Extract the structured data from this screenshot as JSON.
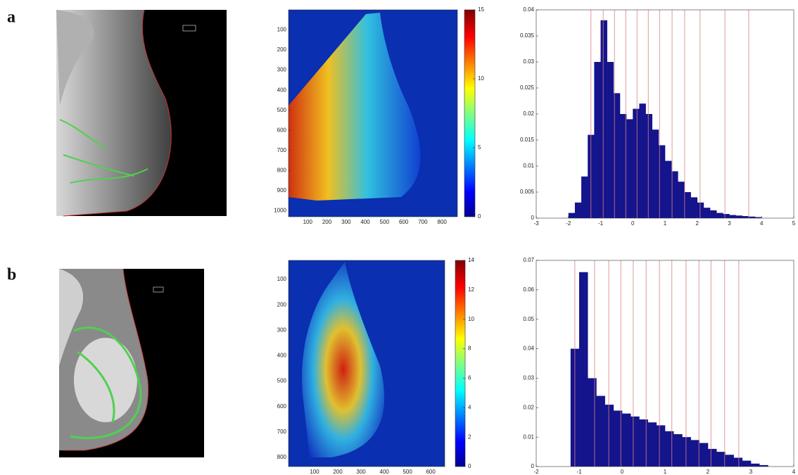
{
  "panel_labels": [
    "a",
    "b"
  ],
  "chart_data": [
    {
      "type": "heatmap",
      "xlim": [
        0,
        880
      ],
      "xticks": [
        100,
        200,
        300,
        400,
        500,
        600,
        700,
        800
      ],
      "ylim": [
        1030,
        0
      ],
      "yticks": [
        100,
        200,
        300,
        400,
        500,
        600,
        700,
        800,
        900,
        1000
      ],
      "clim": [
        0,
        15
      ],
      "colorbar_ticks": [
        0,
        5,
        10,
        15
      ]
    },
    {
      "type": "histogram",
      "color": "#14148c",
      "line_color": "#d98080",
      "xlim": [
        -3,
        5
      ],
      "xticks": [
        -3,
        -2,
        -1,
        0,
        1,
        2,
        3,
        4,
        5
      ],
      "ylim": [
        0,
        0.04
      ],
      "yticks": [
        0,
        0.005,
        0.01,
        0.015,
        0.02,
        0.025,
        0.03,
        0.035,
        0.04
      ],
      "bins": [
        -2,
        -1.8,
        -1.6,
        -1.4,
        -1.2,
        -1,
        -0.8,
        -0.6,
        -0.4,
        -0.2,
        0,
        0.2,
        0.4,
        0.6,
        0.8,
        1,
        1.2,
        1.4,
        1.6,
        1.8,
        2,
        2.2,
        2.4,
        2.6,
        2.8,
        3,
        3.2,
        3.4,
        3.6,
        3.8,
        4
      ],
      "values": [
        0.001,
        0.003,
        0.008,
        0.016,
        0.03,
        0.038,
        0.03,
        0.024,
        0.02,
        0.019,
        0.021,
        0.022,
        0.02,
        0.017,
        0.014,
        0.011,
        0.009,
        0.007,
        0.005,
        0.004,
        0.003,
        0.002,
        0.0015,
        0.001,
        0.0008,
        0.0006,
        0.0005,
        0.0004,
        0.0003,
        0.0002
      ],
      "vlines": [
        -1.3,
        -0.92,
        -0.57,
        -0.22,
        0.13,
        0.48,
        0.83,
        1.22,
        1.61,
        2.09,
        2.86,
        3.6
      ]
    },
    {
      "type": "heatmap",
      "xlim": [
        -12,
        660
      ],
      "xticks": [
        100,
        200,
        300,
        400,
        500,
        600
      ],
      "ylim": [
        836,
        25
      ],
      "yticks": [
        100,
        200,
        300,
        400,
        500,
        600,
        700,
        800
      ],
      "clim": [
        0,
        14
      ],
      "colorbar_ticks": [
        0,
        2,
        4,
        6,
        8,
        10,
        12,
        14
      ]
    },
    {
      "type": "histogram",
      "color": "#14148c",
      "line_color": "#d98080",
      "xlim": [
        -2,
        4
      ],
      "xticks": [
        -2,
        -1,
        0,
        1,
        2,
        3,
        4
      ],
      "ylim": [
        0,
        0.07
      ],
      "yticks": [
        0,
        0.01,
        0.02,
        0.03,
        0.04,
        0.05,
        0.06,
        0.07
      ],
      "bins": [
        -1.2,
        -1,
        -0.8,
        -0.6,
        -0.4,
        -0.2,
        0,
        0.2,
        0.4,
        0.6,
        0.8,
        1,
        1.2,
        1.4,
        1.6,
        1.8,
        2,
        2.2,
        2.4,
        2.6,
        2.8,
        3,
        3.2,
        3.4
      ],
      "values": [
        0.04,
        0.066,
        0.03,
        0.024,
        0.021,
        0.019,
        0.018,
        0.017,
        0.016,
        0.015,
        0.014,
        0.012,
        0.011,
        0.01,
        0.009,
        0.008,
        0.006,
        0.005,
        0.004,
        0.003,
        0.002,
        0.001,
        0.0005
      ],
      "vlines": [
        -1.1,
        -0.64,
        -0.31,
        -0.03,
        0.26,
        0.56,
        0.87,
        1.16,
        1.49,
        1.79,
        2.07,
        2.39,
        2.72
      ]
    }
  ]
}
